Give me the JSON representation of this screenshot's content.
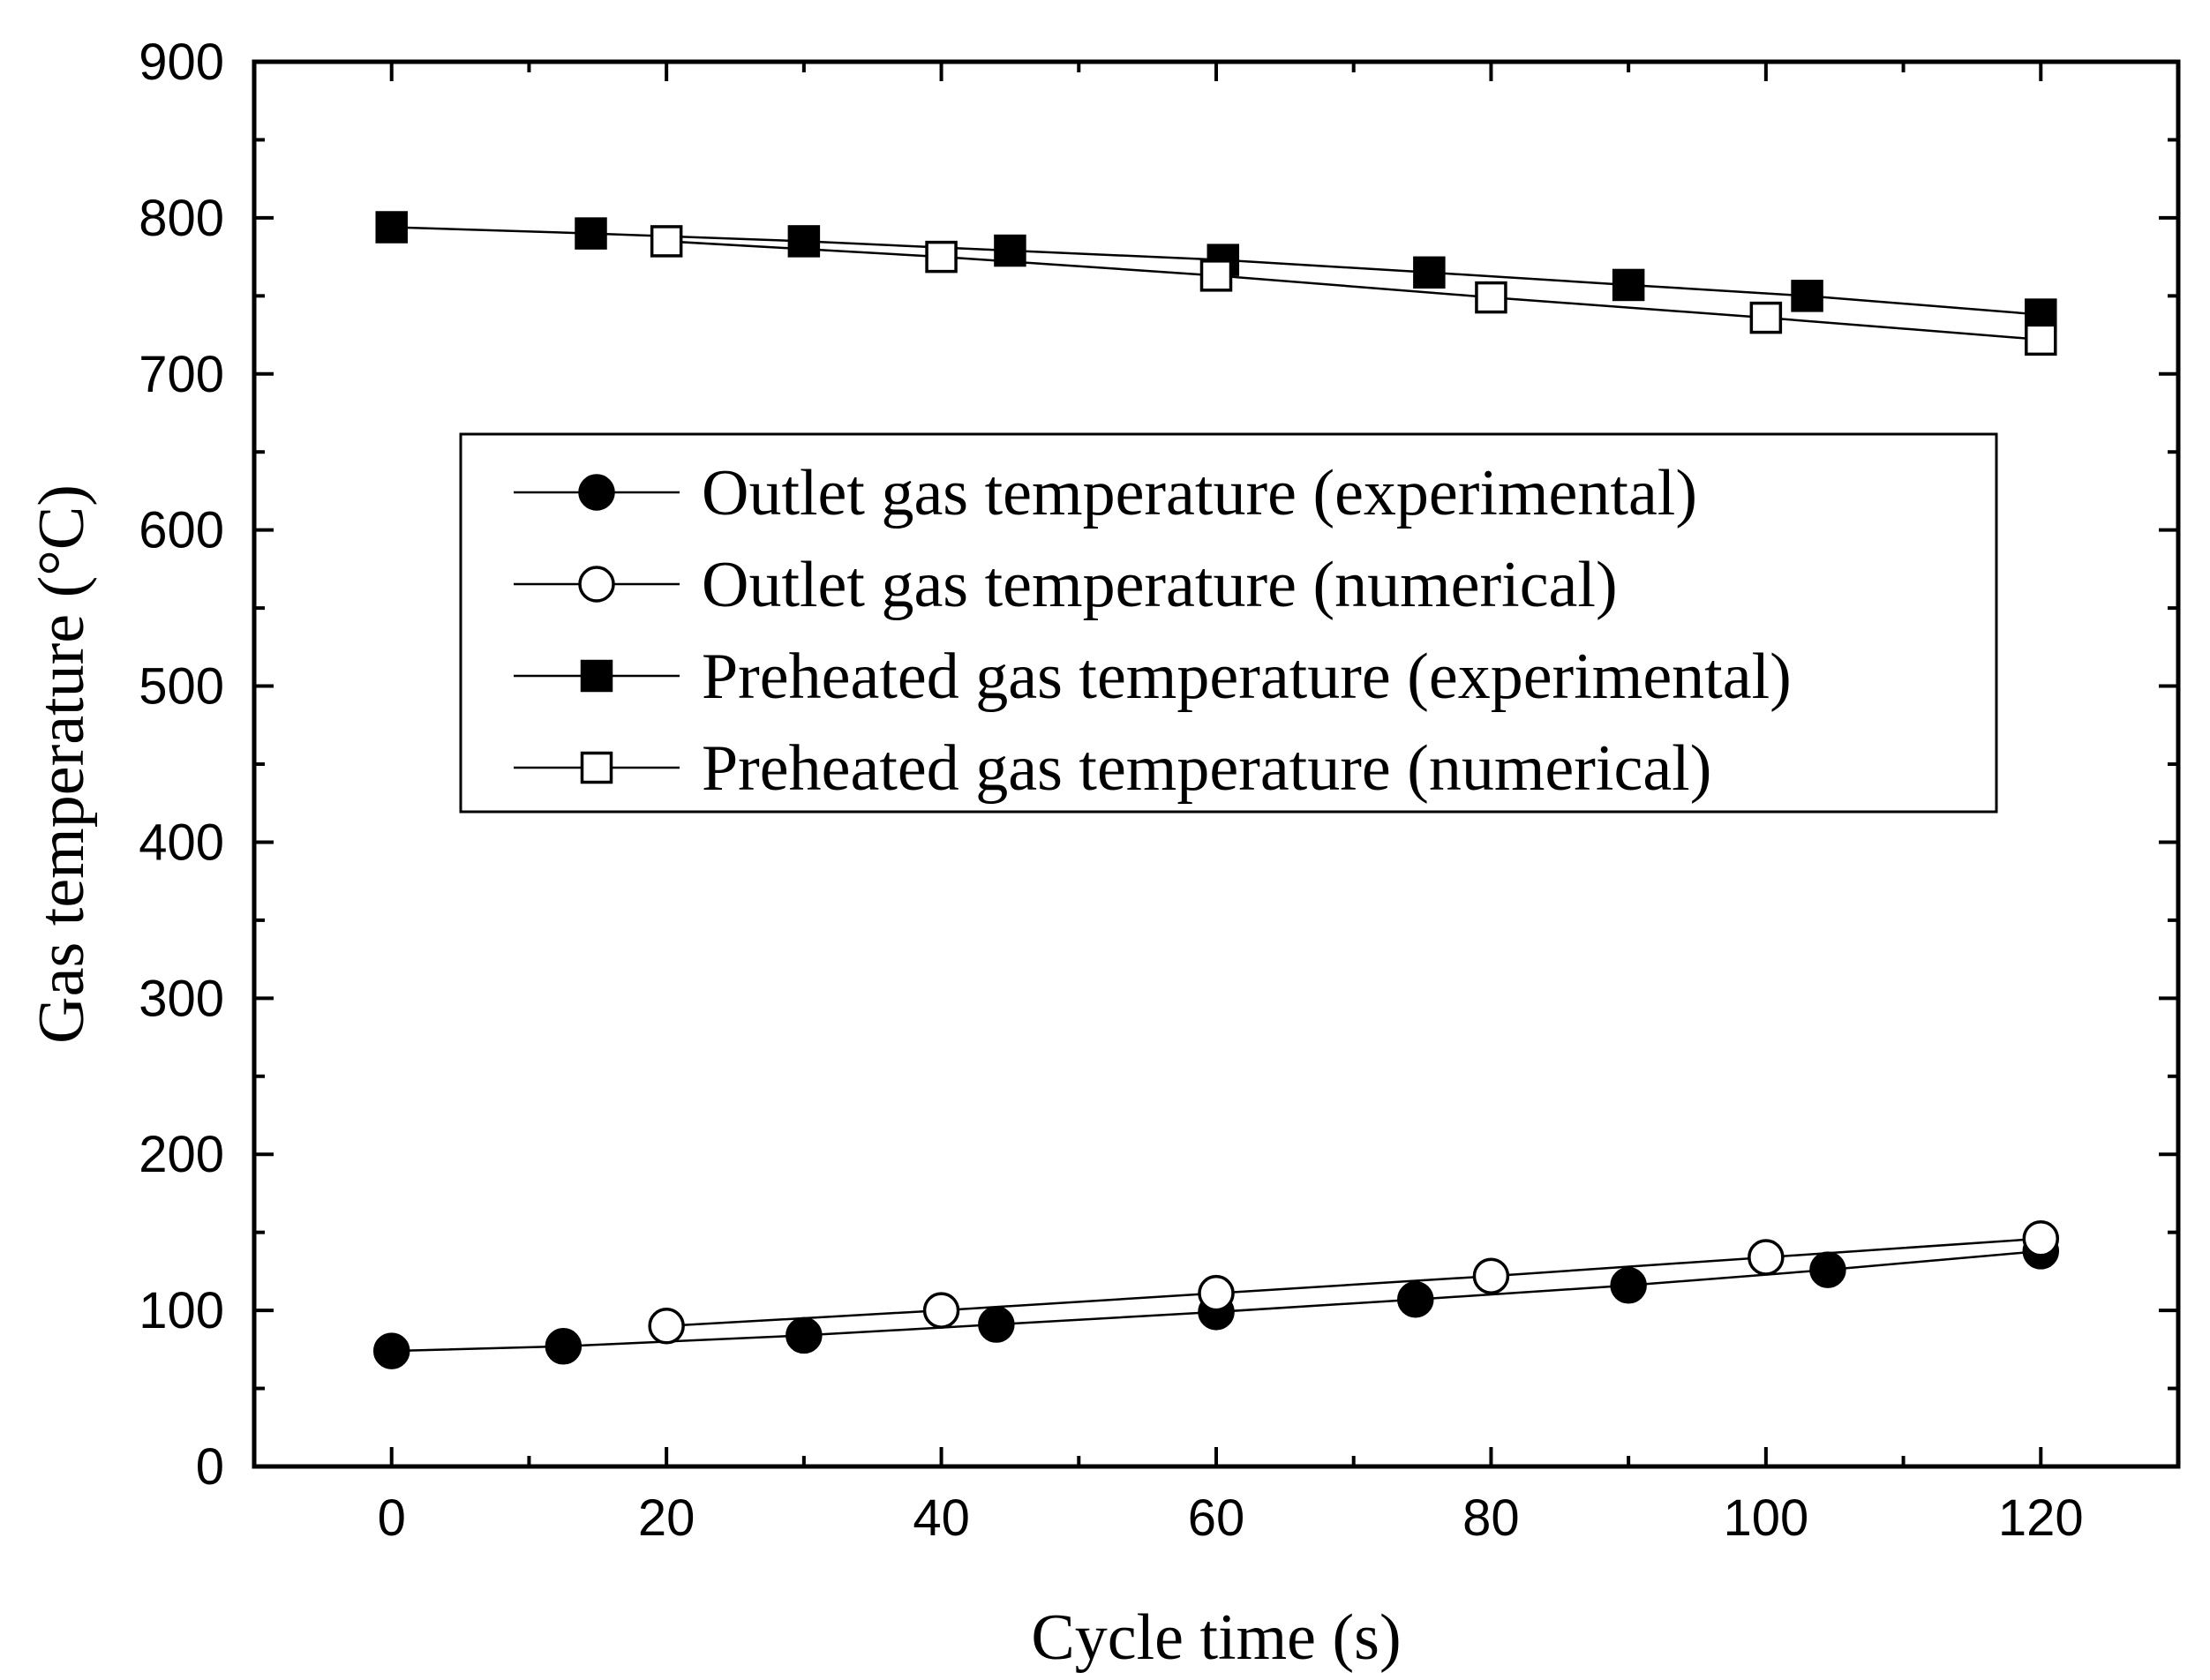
{
  "chart_data": {
    "type": "line",
    "title": "",
    "xlabel": "Cycle time (s)",
    "ylabel": "Gas temperature (°C)",
    "xlim": [
      -10,
      130
    ],
    "ylim": [
      0,
      900
    ],
    "xticks": [
      0,
      20,
      40,
      60,
      80,
      100,
      120
    ],
    "yticks": [
      0,
      100,
      200,
      300,
      400,
      500,
      600,
      700,
      800,
      900
    ],
    "grid": false,
    "legend_position": "center-upper",
    "series": [
      {
        "name": "Outlet gas temperature (experimental)",
        "marker": "filled-circle",
        "x": [
          0,
          12.5,
          30,
          44,
          60,
          74.5,
          90,
          104.5,
          120
        ],
        "y": [
          74,
          77,
          84,
          91,
          99,
          107,
          116,
          126,
          138
        ]
      },
      {
        "name": "Outlet gas temperature (numerical)",
        "marker": "open-circle",
        "x": [
          20,
          40,
          60,
          80,
          100,
          120
        ],
        "y": [
          90,
          100,
          111,
          122,
          134,
          146
        ]
      },
      {
        "name": "Preheated gas temperature (experimental)",
        "marker": "filled-square",
        "x": [
          0,
          14.5,
          30,
          45,
          60.5,
          75.5,
          90,
          103,
          120
        ],
        "y": [
          794,
          790,
          785,
          779,
          773,
          765,
          757,
          750,
          738
        ]
      },
      {
        "name": "Preheated gas temperature (numerical)",
        "marker": "open-square",
        "x": [
          20,
          40,
          60,
          80,
          100,
          120
        ],
        "y": [
          785,
          775,
          763,
          749,
          736,
          722
        ]
      }
    ]
  }
}
